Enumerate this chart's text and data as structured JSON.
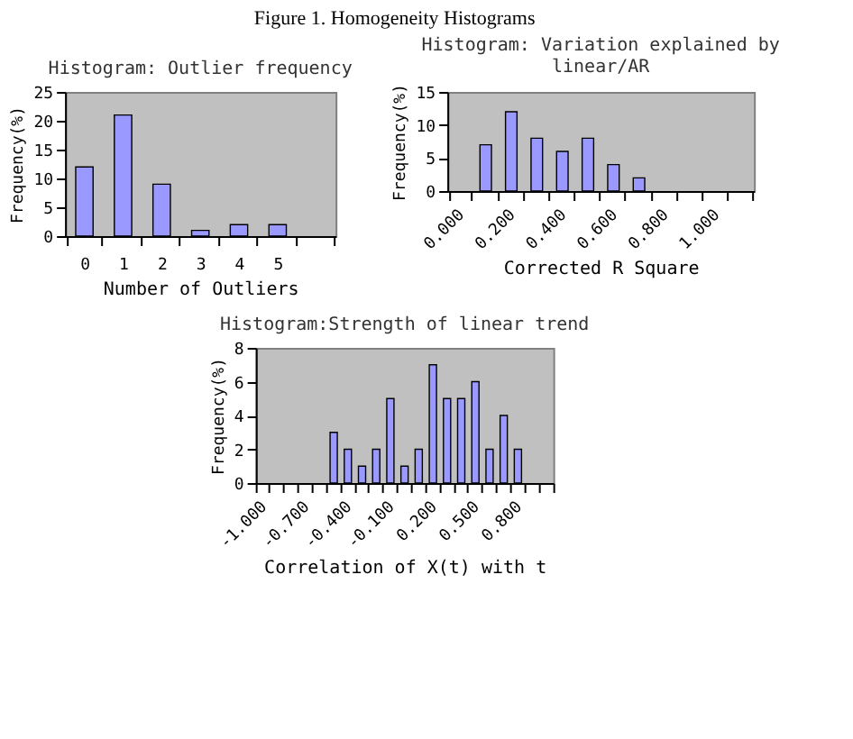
{
  "chart_data": [
    {
      "type": "bar",
      "title": "Histogram: Outlier frequency",
      "xlabel": "Number of Outliers",
      "ylabel": "Frequency(%)",
      "annotations": [
        "Figure 1. Homogeneity Histograms"
      ],
      "categories": [
        "0",
        "1",
        "2",
        "3",
        "4",
        "5",
        null
      ],
      "values": [
        12,
        21,
        9,
        1,
        2,
        2,
        null
      ],
      "color": "#9999ff",
      "ylim": [
        0,
        25
      ],
      "yticks": [
        0,
        5,
        10,
        15,
        20,
        25
      ],
      "grid": false
    },
    {
      "type": "bar",
      "title": "Histogram: Variation explained by linear/AR",
      "xlabel": "Corrected R Square",
      "ylabel": "Frequency(%)",
      "categories": [
        "0.000",
        null,
        "0.200",
        null,
        "0.400",
        null,
        "0.600",
        null,
        "0.800",
        null,
        "1.000",
        null
      ],
      "values": [
        null,
        7,
        12,
        8,
        6,
        8,
        4,
        2,
        null,
        null,
        null,
        null
      ],
      "color": "#9999ff",
      "ylim": [
        0,
        15
      ],
      "yticks": [
        0,
        5,
        10,
        15
      ],
      "grid": false
    },
    {
      "type": "bar",
      "title": "Histogram:Strength of linear trend",
      "xlabel": "Correlation of X(t) with t",
      "ylabel": "Frequency(%)",
      "categories": [
        "-1.000",
        null,
        null,
        "-0.700",
        null,
        null,
        "-0.400",
        null,
        null,
        "-0.100",
        null,
        null,
        "0.200",
        null,
        null,
        "0.500",
        null,
        null,
        "0.800",
        null,
        null
      ],
      "values": [
        null,
        null,
        null,
        null,
        null,
        3,
        2,
        1,
        2,
        5,
        1,
        2,
        7,
        5,
        5,
        6,
        2,
        4,
        2,
        null,
        null
      ],
      "color": "#9999ff",
      "ylim": [
        0,
        8
      ],
      "yticks": [
        0,
        2,
        4,
        6,
        8
      ],
      "grid": false
    }
  ]
}
